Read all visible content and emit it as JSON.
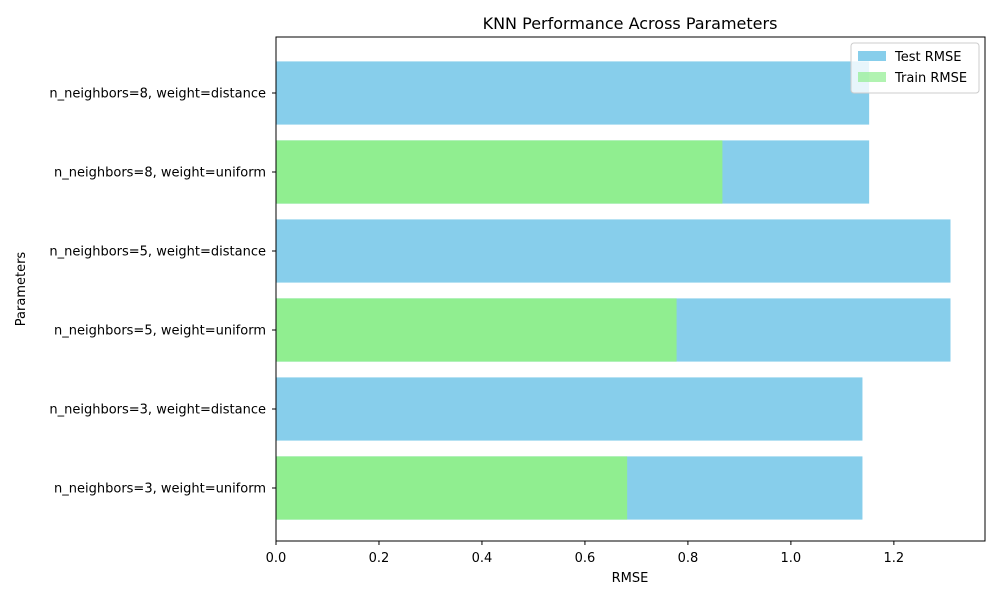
{
  "chart_data": {
    "type": "bar",
    "orientation": "horizontal",
    "title": "KNN Performance Across Parameters",
    "xlabel": "RMSE",
    "ylabel": "Parameters",
    "categories": [
      "n_neighbors=3, weight=uniform",
      "n_neighbors=3, weight=distance",
      "n_neighbors=5, weight=uniform",
      "n_neighbors=5, weight=distance",
      "n_neighbors=8, weight=uniform",
      "n_neighbors=8, weight=distance"
    ],
    "series": [
      {
        "name": "Test RMSE",
        "color": "#87ceeb",
        "values": [
          1.139,
          1.139,
          1.31,
          1.31,
          1.152,
          1.152
        ]
      },
      {
        "name": "Train RMSE",
        "color": "#90ee90",
        "values": [
          0.682,
          0.0,
          0.778,
          0.0,
          0.867,
          0.0
        ]
      }
    ],
    "overlay": true,
    "xlim": [
      0,
      1.377
    ],
    "xticks": [
      0.0,
      0.2,
      0.4,
      0.6,
      0.8,
      1.0,
      1.2
    ],
    "xtick_labels": [
      "0.0",
      "0.2",
      "0.4",
      "0.6",
      "0.8",
      "1.0",
      "1.2"
    ],
    "grid": false,
    "legend_position": "top-right"
  }
}
